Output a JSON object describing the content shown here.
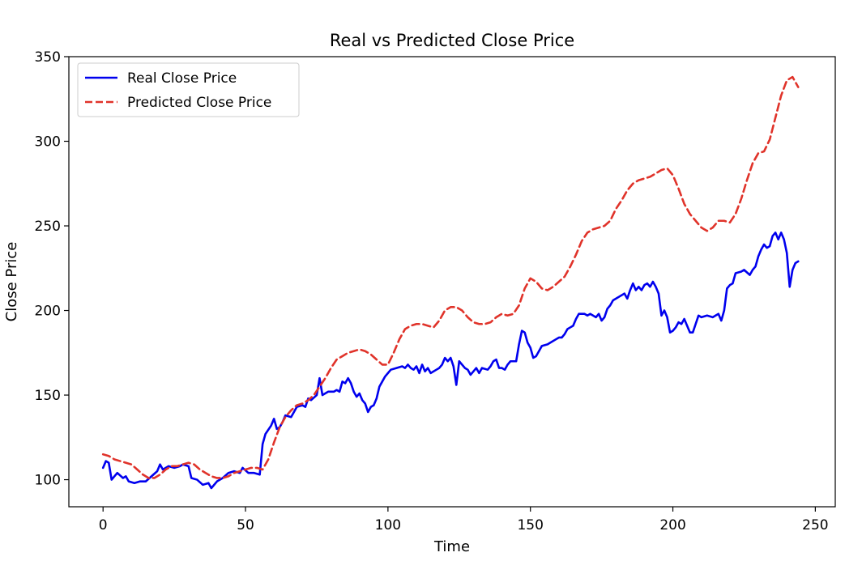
{
  "chart_data": {
    "type": "line",
    "title": "Real vs Predicted Close Price",
    "xlabel": "Time",
    "ylabel": "Close Price",
    "xlim": [
      -12,
      257
    ],
    "ylim": [
      84,
      350
    ],
    "xticks": [
      0,
      50,
      100,
      150,
      200,
      250
    ],
    "xtick_labels": [
      "0",
      "50",
      "100",
      "150",
      "200",
      "250"
    ],
    "yticks": [
      100,
      150,
      200,
      250,
      300,
      350
    ],
    "ytick_labels": [
      "100",
      "150",
      "200",
      "250",
      "300",
      "350"
    ],
    "grid": false,
    "legend_position": "upper-left",
    "series": [
      {
        "name": "Real Close Price",
        "color": "#0000ee",
        "style": "solid",
        "points": [
          [
            0,
            107
          ],
          [
            1,
            111
          ],
          [
            2,
            110
          ],
          [
            3,
            100
          ],
          [
            5,
            104
          ],
          [
            7,
            101
          ],
          [
            8,
            102
          ],
          [
            9,
            99
          ],
          [
            11,
            98
          ],
          [
            13,
            99
          ],
          [
            15,
            99
          ],
          [
            17,
            102
          ],
          [
            19,
            105
          ],
          [
            20,
            109
          ],
          [
            21,
            106
          ],
          [
            23,
            108
          ],
          [
            25,
            107
          ],
          [
            27,
            108
          ],
          [
            28,
            109
          ],
          [
            30,
            108
          ],
          [
            31,
            101
          ],
          [
            33,
            100
          ],
          [
            35,
            97
          ],
          [
            37,
            98
          ],
          [
            38,
            95
          ],
          [
            40,
            99
          ],
          [
            42,
            101
          ],
          [
            44,
            104
          ],
          [
            46,
            105
          ],
          [
            48,
            104
          ],
          [
            49,
            107
          ],
          [
            51,
            104
          ],
          [
            53,
            104
          ],
          [
            55,
            103
          ],
          [
            56,
            121
          ],
          [
            57,
            127
          ],
          [
            59,
            132
          ],
          [
            60,
            136
          ],
          [
            61,
            130
          ],
          [
            62,
            131
          ],
          [
            63,
            134
          ],
          [
            64,
            138
          ],
          [
            66,
            137
          ],
          [
            67,
            140
          ],
          [
            68,
            143
          ],
          [
            70,
            144
          ],
          [
            71,
            143
          ],
          [
            72,
            148
          ],
          [
            73,
            147
          ],
          [
            75,
            150
          ],
          [
            76,
            160
          ],
          [
            77,
            150
          ],
          [
            79,
            152
          ],
          [
            81,
            152
          ],
          [
            82,
            153
          ],
          [
            83,
            152
          ],
          [
            84,
            158
          ],
          [
            85,
            157
          ],
          [
            86,
            160
          ],
          [
            87,
            157
          ],
          [
            88,
            152
          ],
          [
            89,
            149
          ],
          [
            90,
            151
          ],
          [
            91,
            147
          ],
          [
            92,
            145
          ],
          [
            93,
            140
          ],
          [
            94,
            143
          ],
          [
            95,
            144
          ],
          [
            96,
            148
          ],
          [
            97,
            155
          ],
          [
            98,
            158
          ],
          [
            99,
            161
          ],
          [
            100,
            163
          ],
          [
            101,
            165
          ],
          [
            103,
            166
          ],
          [
            105,
            167
          ],
          [
            106,
            166
          ],
          [
            107,
            168
          ],
          [
            108,
            166
          ],
          [
            109,
            165
          ],
          [
            110,
            167
          ],
          [
            111,
            163
          ],
          [
            112,
            168
          ],
          [
            113,
            164
          ],
          [
            114,
            166
          ],
          [
            115,
            163
          ],
          [
            117,
            165
          ],
          [
            118,
            166
          ],
          [
            119,
            168
          ],
          [
            120,
            172
          ],
          [
            121,
            170
          ],
          [
            122,
            172
          ],
          [
            123,
            167
          ],
          [
            124,
            156
          ],
          [
            125,
            170
          ],
          [
            127,
            166
          ],
          [
            128,
            165
          ],
          [
            129,
            162
          ],
          [
            131,
            166
          ],
          [
            132,
            163
          ],
          [
            133,
            166
          ],
          [
            135,
            165
          ],
          [
            136,
            167
          ],
          [
            137,
            170
          ],
          [
            138,
            171
          ],
          [
            139,
            166
          ],
          [
            140,
            166
          ],
          [
            141,
            165
          ],
          [
            142,
            168
          ],
          [
            143,
            170
          ],
          [
            145,
            170
          ],
          [
            146,
            180
          ],
          [
            147,
            188
          ],
          [
            148,
            187
          ],
          [
            149,
            181
          ],
          [
            150,
            178
          ],
          [
            151,
            172
          ],
          [
            152,
            173
          ],
          [
            153,
            176
          ],
          [
            154,
            179
          ],
          [
            156,
            180
          ],
          [
            157,
            181
          ],
          [
            159,
            183
          ],
          [
            160,
            184
          ],
          [
            161,
            184
          ],
          [
            162,
            186
          ],
          [
            163,
            189
          ],
          [
            164,
            190
          ],
          [
            165,
            191
          ],
          [
            166,
            195
          ],
          [
            167,
            198
          ],
          [
            169,
            198
          ],
          [
            170,
            197
          ],
          [
            171,
            198
          ],
          [
            173,
            196
          ],
          [
            174,
            198
          ],
          [
            175,
            194
          ],
          [
            176,
            196
          ],
          [
            177,
            201
          ],
          [
            178,
            203
          ],
          [
            179,
            206
          ],
          [
            181,
            208
          ],
          [
            183,
            210
          ],
          [
            184,
            207
          ],
          [
            185,
            212
          ],
          [
            186,
            216
          ],
          [
            187,
            212
          ],
          [
            188,
            214
          ],
          [
            189,
            212
          ],
          [
            190,
            215
          ],
          [
            191,
            216
          ],
          [
            192,
            214
          ],
          [
            193,
            217
          ],
          [
            194,
            214
          ],
          [
            195,
            210
          ],
          [
            196,
            197
          ],
          [
            197,
            200
          ],
          [
            198,
            196
          ],
          [
            199,
            187
          ],
          [
            200,
            188
          ],
          [
            201,
            190
          ],
          [
            202,
            193
          ],
          [
            203,
            192
          ],
          [
            204,
            195
          ],
          [
            205,
            191
          ],
          [
            206,
            187
          ],
          [
            207,
            187
          ],
          [
            208,
            192
          ],
          [
            209,
            197
          ],
          [
            210,
            196
          ],
          [
            212,
            197
          ],
          [
            214,
            196
          ],
          [
            215,
            197
          ],
          [
            216,
            198
          ],
          [
            217,
            194
          ],
          [
            218,
            200
          ],
          [
            219,
            213
          ],
          [
            220,
            215
          ],
          [
            221,
            216
          ],
          [
            222,
            222
          ],
          [
            224,
            223
          ],
          [
            225,
            224
          ],
          [
            227,
            221
          ],
          [
            228,
            224
          ],
          [
            229,
            226
          ],
          [
            230,
            232
          ],
          [
            231,
            236
          ],
          [
            232,
            239
          ],
          [
            233,
            237
          ],
          [
            234,
            238
          ],
          [
            235,
            244
          ],
          [
            236,
            246
          ],
          [
            237,
            242
          ],
          [
            238,
            246
          ],
          [
            239,
            242
          ],
          [
            240,
            234
          ],
          [
            241,
            214
          ],
          [
            242,
            224
          ],
          [
            243,
            228
          ],
          [
            244,
            229
          ]
        ]
      },
      {
        "name": "Predicted Close Price",
        "color": "#e0332a",
        "style": "dashed",
        "points": [
          [
            0,
            115
          ],
          [
            2,
            114
          ],
          [
            4,
            112
          ],
          [
            6,
            111
          ],
          [
            8,
            110
          ],
          [
            10,
            109
          ],
          [
            12,
            106
          ],
          [
            14,
            103
          ],
          [
            16,
            101
          ],
          [
            18,
            101
          ],
          [
            20,
            103
          ],
          [
            22,
            106
          ],
          [
            24,
            108
          ],
          [
            26,
            108
          ],
          [
            28,
            109
          ],
          [
            30,
            110
          ],
          [
            32,
            109
          ],
          [
            34,
            106
          ],
          [
            36,
            104
          ],
          [
            38,
            102
          ],
          [
            40,
            101
          ],
          [
            42,
            101
          ],
          [
            44,
            102
          ],
          [
            46,
            104
          ],
          [
            48,
            105
          ],
          [
            50,
            106
          ],
          [
            52,
            107
          ],
          [
            54,
            107
          ],
          [
            56,
            106
          ],
          [
            58,
            112
          ],
          [
            60,
            122
          ],
          [
            62,
            131
          ],
          [
            64,
            137
          ],
          [
            66,
            141
          ],
          [
            68,
            144
          ],
          [
            70,
            145
          ],
          [
            72,
            147
          ],
          [
            74,
            150
          ],
          [
            76,
            155
          ],
          [
            78,
            160
          ],
          [
            80,
            166
          ],
          [
            82,
            171
          ],
          [
            84,
            173
          ],
          [
            86,
            175
          ],
          [
            88,
            176
          ],
          [
            90,
            177
          ],
          [
            92,
            176
          ],
          [
            94,
            174
          ],
          [
            96,
            171
          ],
          [
            98,
            168
          ],
          [
            100,
            168
          ],
          [
            102,
            175
          ],
          [
            104,
            183
          ],
          [
            106,
            189
          ],
          [
            108,
            191
          ],
          [
            110,
            192
          ],
          [
            112,
            192
          ],
          [
            114,
            191
          ],
          [
            116,
            190
          ],
          [
            118,
            194
          ],
          [
            120,
            200
          ],
          [
            122,
            202
          ],
          [
            124,
            202
          ],
          [
            126,
            200
          ],
          [
            128,
            196
          ],
          [
            130,
            193
          ],
          [
            132,
            192
          ],
          [
            134,
            192
          ],
          [
            136,
            193
          ],
          [
            138,
            196
          ],
          [
            140,
            198
          ],
          [
            142,
            197
          ],
          [
            144,
            198
          ],
          [
            146,
            203
          ],
          [
            148,
            213
          ],
          [
            150,
            219
          ],
          [
            152,
            217
          ],
          [
            154,
            213
          ],
          [
            156,
            212
          ],
          [
            158,
            214
          ],
          [
            160,
            217
          ],
          [
            162,
            220
          ],
          [
            164,
            226
          ],
          [
            166,
            233
          ],
          [
            168,
            241
          ],
          [
            170,
            246
          ],
          [
            172,
            248
          ],
          [
            174,
            249
          ],
          [
            176,
            250
          ],
          [
            178,
            253
          ],
          [
            180,
            260
          ],
          [
            182,
            265
          ],
          [
            184,
            271
          ],
          [
            186,
            275
          ],
          [
            188,
            277
          ],
          [
            190,
            278
          ],
          [
            192,
            279
          ],
          [
            194,
            281
          ],
          [
            196,
            283
          ],
          [
            198,
            284
          ],
          [
            200,
            280
          ],
          [
            202,
            272
          ],
          [
            204,
            263
          ],
          [
            206,
            257
          ],
          [
            208,
            253
          ],
          [
            210,
            249
          ],
          [
            212,
            247
          ],
          [
            214,
            249
          ],
          [
            216,
            253
          ],
          [
            218,
            253
          ],
          [
            220,
            252
          ],
          [
            222,
            257
          ],
          [
            224,
            266
          ],
          [
            226,
            277
          ],
          [
            228,
            287
          ],
          [
            230,
            293
          ],
          [
            232,
            294
          ],
          [
            234,
            301
          ],
          [
            236,
            314
          ],
          [
            238,
            327
          ],
          [
            240,
            336
          ],
          [
            242,
            338
          ],
          [
            244,
            332
          ]
        ]
      }
    ]
  }
}
